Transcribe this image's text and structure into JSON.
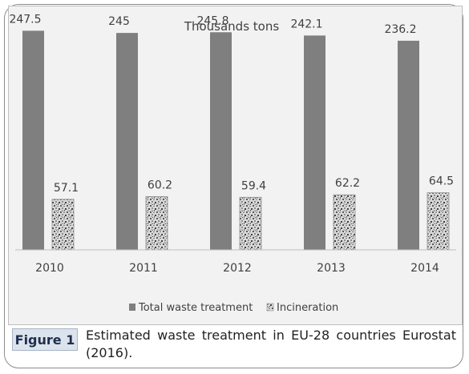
{
  "chart_data": {
    "type": "bar",
    "title": "Thousands tons",
    "categories": [
      "2010",
      "2011",
      "2012",
      "2013",
      "2014"
    ],
    "series": [
      {
        "name": "Total waste treatment",
        "values": [
          247.5,
          245,
          245.8,
          242.1,
          236.2
        ],
        "value_labels": [
          "247.5",
          "245",
          "245.8",
          "242.1",
          "236.2"
        ]
      },
      {
        "name": "Incineration",
        "values": [
          57.1,
          60.2,
          59.4,
          62.2,
          64.5
        ],
        "value_labels": [
          "57.1",
          "60.2",
          "59.4",
          "62.2",
          "64.5"
        ]
      }
    ],
    "ylim": [
      0,
      260
    ],
    "grid": false,
    "legend_position": "bottom"
  },
  "colors": {
    "total_bar": "#7f7f7f",
    "incineration_pattern": "textured-gray",
    "plot_background": "#f2f2f2"
  },
  "caption": {
    "label": "Figure 1",
    "text": "Estimated waste treatment in EU-28 countries Eurostat (2016)."
  }
}
